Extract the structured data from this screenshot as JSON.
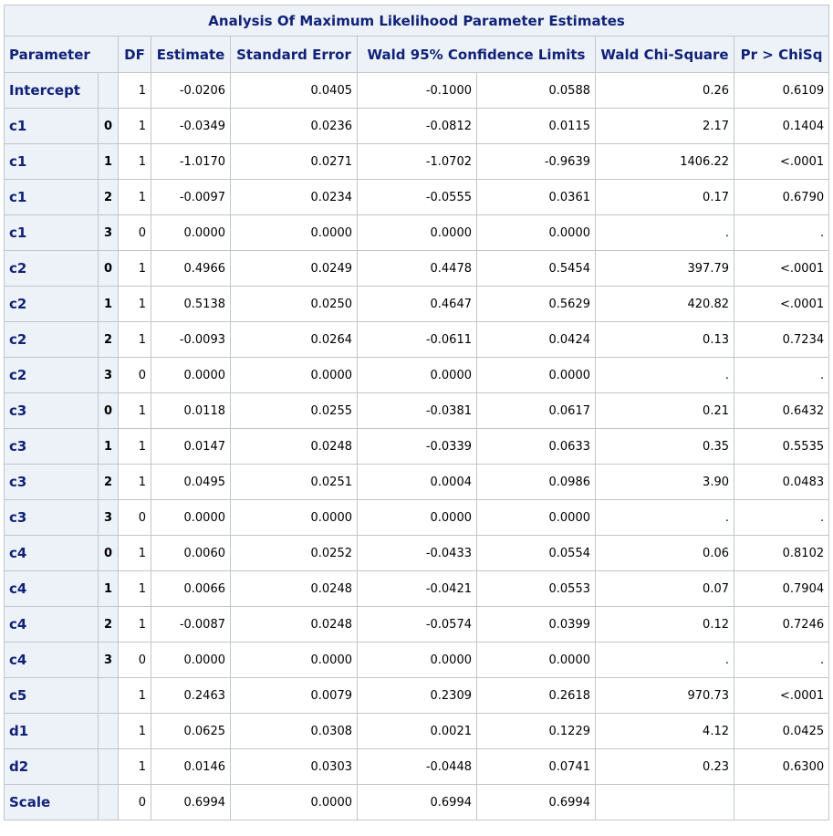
{
  "table": {
    "title": "Analysis Of Maximum Likelihood Parameter Estimates",
    "headers": {
      "parameter": "Parameter",
      "df": "DF",
      "estimate": "Estimate",
      "stderr": "Standard Error",
      "wald_cl": "Wald 95% Confidence Limits",
      "chisq": "Wald Chi-Square",
      "prob": "Pr > ChiSq"
    },
    "rows": [
      {
        "param": "Intercept",
        "level": "",
        "df": "1",
        "est": "-0.0206",
        "se": "0.0405",
        "lower": "-0.1000",
        "upper": "0.0588",
        "chisq": "0.26",
        "p": "0.6109"
      },
      {
        "param": "c1",
        "level": "0",
        "df": "1",
        "est": "-0.0349",
        "se": "0.0236",
        "lower": "-0.0812",
        "upper": "0.0115",
        "chisq": "2.17",
        "p": "0.1404"
      },
      {
        "param": "c1",
        "level": "1",
        "df": "1",
        "est": "-1.0170",
        "se": "0.0271",
        "lower": "-1.0702",
        "upper": "-0.9639",
        "chisq": "1406.22",
        "p": "<.0001"
      },
      {
        "param": "c1",
        "level": "2",
        "df": "1",
        "est": "-0.0097",
        "se": "0.0234",
        "lower": "-0.0555",
        "upper": "0.0361",
        "chisq": "0.17",
        "p": "0.6790"
      },
      {
        "param": "c1",
        "level": "3",
        "df": "0",
        "est": "0.0000",
        "se": "0.0000",
        "lower": "0.0000",
        "upper": "0.0000",
        "chisq": ".",
        "p": "."
      },
      {
        "param": "c2",
        "level": "0",
        "df": "1",
        "est": "0.4966",
        "se": "0.0249",
        "lower": "0.4478",
        "upper": "0.5454",
        "chisq": "397.79",
        "p": "<.0001"
      },
      {
        "param": "c2",
        "level": "1",
        "df": "1",
        "est": "0.5138",
        "se": "0.0250",
        "lower": "0.4647",
        "upper": "0.5629",
        "chisq": "420.82",
        "p": "<.0001"
      },
      {
        "param": "c2",
        "level": "2",
        "df": "1",
        "est": "-0.0093",
        "se": "0.0264",
        "lower": "-0.0611",
        "upper": "0.0424",
        "chisq": "0.13",
        "p": "0.7234"
      },
      {
        "param": "c2",
        "level": "3",
        "df": "0",
        "est": "0.0000",
        "se": "0.0000",
        "lower": "0.0000",
        "upper": "0.0000",
        "chisq": ".",
        "p": "."
      },
      {
        "param": "c3",
        "level": "0",
        "df": "1",
        "est": "0.0118",
        "se": "0.0255",
        "lower": "-0.0381",
        "upper": "0.0617",
        "chisq": "0.21",
        "p": "0.6432"
      },
      {
        "param": "c3",
        "level": "1",
        "df": "1",
        "est": "0.0147",
        "se": "0.0248",
        "lower": "-0.0339",
        "upper": "0.0633",
        "chisq": "0.35",
        "p": "0.5535"
      },
      {
        "param": "c3",
        "level": "2",
        "df": "1",
        "est": "0.0495",
        "se": "0.0251",
        "lower": "0.0004",
        "upper": "0.0986",
        "chisq": "3.90",
        "p": "0.0483"
      },
      {
        "param": "c3",
        "level": "3",
        "df": "0",
        "est": "0.0000",
        "se": "0.0000",
        "lower": "0.0000",
        "upper": "0.0000",
        "chisq": ".",
        "p": "."
      },
      {
        "param": "c4",
        "level": "0",
        "df": "1",
        "est": "0.0060",
        "se": "0.0252",
        "lower": "-0.0433",
        "upper": "0.0554",
        "chisq": "0.06",
        "p": "0.8102"
      },
      {
        "param": "c4",
        "level": "1",
        "df": "1",
        "est": "0.0066",
        "se": "0.0248",
        "lower": "-0.0421",
        "upper": "0.0553",
        "chisq": "0.07",
        "p": "0.7904"
      },
      {
        "param": "c4",
        "level": "2",
        "df": "1",
        "est": "-0.0087",
        "se": "0.0248",
        "lower": "-0.0574",
        "upper": "0.0399",
        "chisq": "0.12",
        "p": "0.7246"
      },
      {
        "param": "c4",
        "level": "3",
        "df": "0",
        "est": "0.0000",
        "se": "0.0000",
        "lower": "0.0000",
        "upper": "0.0000",
        "chisq": ".",
        "p": "."
      },
      {
        "param": "c5",
        "level": "",
        "df": "1",
        "est": "0.2463",
        "se": "0.0079",
        "lower": "0.2309",
        "upper": "0.2618",
        "chisq": "970.73",
        "p": "<.0001"
      },
      {
        "param": "d1",
        "level": "",
        "df": "1",
        "est": "0.0625",
        "se": "0.0308",
        "lower": "0.0021",
        "upper": "0.1229",
        "chisq": "4.12",
        "p": "0.0425"
      },
      {
        "param": "d2",
        "level": "",
        "df": "1",
        "est": "0.0146",
        "se": "0.0303",
        "lower": "-0.0448",
        "upper": "0.0741",
        "chisq": "0.23",
        "p": "0.6300"
      },
      {
        "param": "Scale",
        "level": "",
        "df": "0",
        "est": "0.6994",
        "se": "0.0000",
        "lower": "0.6994",
        "upper": "0.6994",
        "chisq": "",
        "p": ""
      }
    ]
  },
  "colors": {
    "header_bg": "#edf2f9",
    "header_text": "#112277",
    "border": "#c1c6c9"
  }
}
